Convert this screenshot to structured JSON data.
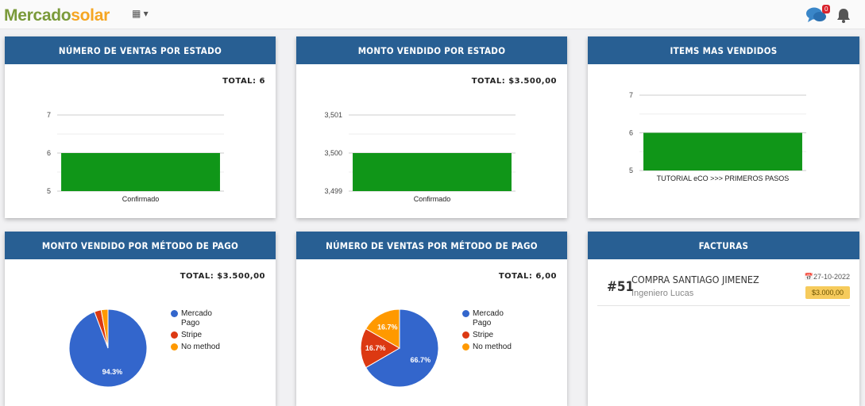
{
  "header": {
    "logo_part1": "Mercado",
    "logo_part2": "solar",
    "chat_badge": "0"
  },
  "cards": [
    {
      "title": "NÚMERO DE VENTAS POR ESTADO",
      "total": "TOTAL: 6"
    },
    {
      "title": "MONTO VENDIDO POR ESTADO",
      "total": "TOTAL: $3.500,00"
    },
    {
      "title": "ITEMS MAS VENDIDOS"
    },
    {
      "title": "MONTO VENDIDO POR MÉTODO DE PAGO",
      "total": "TOTAL: $3.500,00"
    },
    {
      "title": "NÚMERO DE VENTAS POR MÉTODO DE PAGO",
      "total": "TOTAL: 6,00"
    },
    {
      "title": "FACTURAS"
    }
  ],
  "invoice": {
    "number": "#51",
    "title": "COMPRA SANTIAGO JIMENEZ",
    "subtitle": "Ingeniero Lucas",
    "date": "27-10-2022",
    "amount": "$3.000,00"
  },
  "legend": [
    "Mercado Pago",
    "Stripe",
    "No method"
  ],
  "colors": {
    "bar": "#109618",
    "blue": "#3366cc",
    "red": "#dc3912",
    "orange": "#ff9900",
    "header": "#285f93"
  },
  "chart_data": [
    {
      "type": "bar",
      "categories": [
        "Confirmado"
      ],
      "values": [
        6
      ],
      "ylim": [
        5,
        7
      ],
      "ticks": [
        "5",
        "6",
        "7"
      ]
    },
    {
      "type": "bar",
      "categories": [
        "Confirmado"
      ],
      "values": [
        3500
      ],
      "ylim": [
        3499,
        3501
      ],
      "ticks": [
        "3,499",
        "3,500",
        "3,501"
      ]
    },
    {
      "type": "bar",
      "categories": [
        "TUTORIAL eCO >>> PRIMEROS PASOS"
      ],
      "values": [
        6
      ],
      "ylim": [
        5,
        7
      ],
      "ticks": [
        "5",
        "6",
        "7"
      ]
    },
    {
      "type": "pie",
      "labels": [
        "Mercado Pago",
        "Stripe",
        "No method"
      ],
      "values": [
        94.3,
        2.85,
        2.85
      ],
      "data_labels": [
        "94.3%",
        "",
        ""
      ]
    },
    {
      "type": "pie",
      "labels": [
        "Mercado Pago",
        "Stripe",
        "No method"
      ],
      "values": [
        66.7,
        16.7,
        16.7
      ],
      "data_labels": [
        "66.7%",
        "16.7%",
        "16.7%"
      ]
    }
  ]
}
